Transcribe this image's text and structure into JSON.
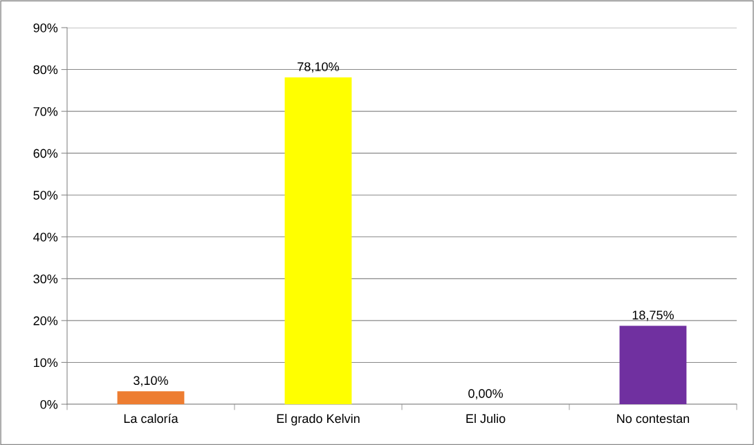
{
  "chart_data": {
    "type": "bar",
    "categories": [
      "La caloría",
      "El grado Kelvin",
      "El Julio",
      "No contestan"
    ],
    "values": [
      3.1,
      78.1,
      0.0,
      18.75
    ],
    "colors": [
      "#ed7d31",
      "#ffff00",
      "#a5a5a5",
      "#7030a0"
    ],
    "value_labels": [
      "3,10%",
      "78,10%",
      "0,00%",
      "18,75%"
    ],
    "ylim": [
      0,
      90
    ],
    "yticks": [
      {
        "value": 0,
        "label": "0%"
      },
      {
        "value": 10,
        "label": "10%"
      },
      {
        "value": 20,
        "label": "20%"
      },
      {
        "value": 30,
        "label": "30%"
      },
      {
        "value": 40,
        "label": "40%"
      },
      {
        "value": 50,
        "label": "50%"
      },
      {
        "value": 60,
        "label": "60%"
      },
      {
        "value": 70,
        "label": "70%"
      },
      {
        "value": 80,
        "label": "80%"
      },
      {
        "value": 90,
        "label": "90%"
      }
    ],
    "grid": "y",
    "legend": false
  }
}
